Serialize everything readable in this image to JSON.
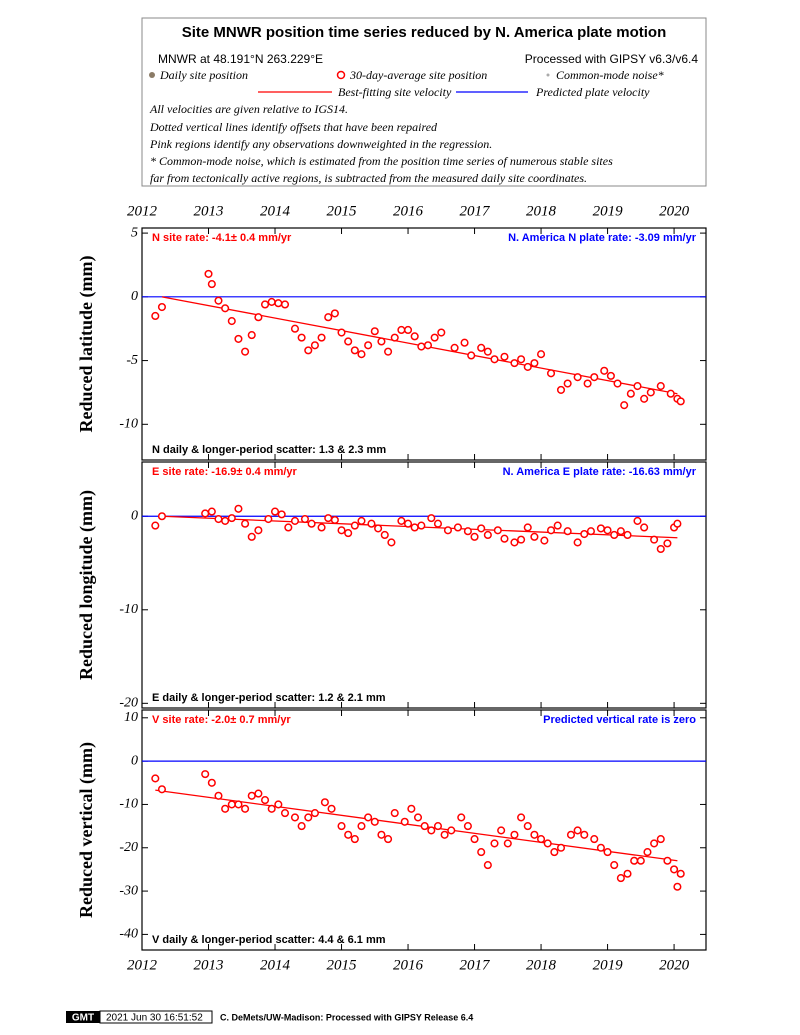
{
  "header": {
    "title": "Site MNWR position time series reduced by N. America plate motion",
    "location": "MNWR at 48.191°N 263.229°E",
    "processing": "Processed with GIPSY v6.3/v6.4",
    "legend": {
      "daily": "Daily site position",
      "average": "30-day-average site position",
      "noise": "Common-mode noise*",
      "best_fit": "Best-fitting site velocity",
      "predicted": "Predicted plate velocity"
    },
    "notes": [
      "All velocities are given relative to IGS14.",
      "Dotted vertical lines identify offsets that have been repaired",
      "Pink regions identify any observations downweighted in the regression.",
      "* Common-mode noise, which is estimated from the position time series of numerous stable sites",
      "far from tectonically active regions, is subtracted from the measured daily site coordinates."
    ]
  },
  "chart_data": [
    {
      "type": "scatter",
      "y_label": "Reduced latitude (mm)",
      "rate_label": "N site rate:  -4.1± 0.4 mm/yr",
      "plate_label": "N. America N plate rate: -3.09 mm/yr",
      "scatter_label": "N daily & longer-period scatter:   1.3 &   2.3 mm",
      "xlim": [
        2012,
        2020.48
      ],
      "xticks": [
        2012,
        2013,
        2014,
        2015,
        2016,
        2017,
        2018,
        2019,
        2020
      ],
      "ylim": [
        -12.8,
        5.4
      ],
      "yticks": [
        5,
        0,
        -5,
        -10
      ],
      "reference_line": 0,
      "reference_color": "#0000ff",
      "fit_line": {
        "color": "#ff0000",
        "x": [
          2012.3,
          2020.05
        ],
        "values": [
          0,
          -7.6
        ]
      },
      "series": [
        {
          "color": "#ff0000",
          "x": [
            2012.2,
            2012.3,
            2013.0,
            2013.05,
            2013.15,
            2013.25,
            2013.35,
            2013.45,
            2013.55,
            2013.65,
            2013.75,
            2013.85,
            2013.95,
            2014.05,
            2014.15,
            2014.3,
            2014.4,
            2014.5,
            2014.6,
            2014.7,
            2014.8,
            2014.9,
            2015.0,
            2015.1,
            2015.2,
            2015.3,
            2015.4,
            2015.5,
            2015.6,
            2015.7,
            2015.8,
            2015.9,
            2016.0,
            2016.1,
            2016.2,
            2016.3,
            2016.4,
            2016.5,
            2016.7,
            2016.85,
            2016.95,
            2017.1,
            2017.2,
            2017.3,
            2017.45,
            2017.6,
            2017.7,
            2017.8,
            2017.9,
            2018.0,
            2018.15,
            2018.3,
            2018.4,
            2018.55,
            2018.7,
            2018.8,
            2018.95,
            2019.05,
            2019.15,
            2019.25,
            2019.35,
            2019.45,
            2019.55,
            2019.65,
            2019.8,
            2019.95,
            2020.05,
            2020.1
          ],
          "values": [
            -1.5,
            -0.8,
            1.8,
            1,
            -0.3,
            -0.9,
            -1.9,
            -3.3,
            -4.3,
            -3.0,
            -1.6,
            -0.6,
            -0.4,
            -0.5,
            -0.6,
            -2.5,
            -3.2,
            -4.2,
            -3.8,
            -3.2,
            -1.6,
            -1.3,
            -2.8,
            -3.5,
            -4.2,
            -4.5,
            -3.8,
            -2.7,
            -3.5,
            -4.3,
            -3.2,
            -2.6,
            -2.6,
            -3.1,
            -3.9,
            -3.8,
            -3.2,
            -2.8,
            -4.0,
            -3.6,
            -4.6,
            -4.0,
            -4.3,
            -4.9,
            -4.7,
            -5.2,
            -4.9,
            -5.5,
            -5.2,
            -4.5,
            -6.0,
            -7.3,
            -6.8,
            -6.3,
            -6.8,
            -6.3,
            -5.8,
            -6.2,
            -6.8,
            -8.5,
            -7.6,
            -7.0,
            -8.0,
            -7.5,
            -7.0,
            -7.6,
            -8.0,
            -8.2
          ]
        }
      ]
    },
    {
      "type": "scatter",
      "y_label": "Reduced longitude (mm)",
      "rate_label": "E site rate: -16.9± 0.4 mm/yr",
      "plate_label": "N. America E plate rate: -16.63 mm/yr",
      "scatter_label": "E daily & longer-period scatter:   1.2 &   2.1 mm",
      "xlim": [
        2012,
        2020.48
      ],
      "xticks": [
        2012,
        2013,
        2014,
        2015,
        2016,
        2017,
        2018,
        2019,
        2020
      ],
      "ylim": [
        -20.5,
        5.8
      ],
      "yticks": [
        0,
        -10,
        -20
      ],
      "reference_line": 0,
      "reference_color": "#0000ff",
      "fit_line": {
        "color": "#ff0000",
        "x": [
          2012.3,
          2020.05
        ],
        "values": [
          0,
          -2.3
        ]
      },
      "series": [
        {
          "color": "#ff0000",
          "x": [
            2012.2,
            2012.3,
            2012.95,
            2013.05,
            2013.15,
            2013.25,
            2013.35,
            2013.45,
            2013.55,
            2013.65,
            2013.75,
            2013.9,
            2014.0,
            2014.1,
            2014.2,
            2014.3,
            2014.45,
            2014.55,
            2014.7,
            2014.8,
            2014.9,
            2015.0,
            2015.1,
            2015.2,
            2015.3,
            2015.45,
            2015.55,
            2015.65,
            2015.75,
            2015.9,
            2016.0,
            2016.1,
            2016.2,
            2016.35,
            2016.45,
            2016.6,
            2016.75,
            2016.9,
            2017.0,
            2017.1,
            2017.2,
            2017.35,
            2017.45,
            2017.6,
            2017.7,
            2017.8,
            2017.9,
            2018.05,
            2018.15,
            2018.25,
            2018.4,
            2018.55,
            2018.65,
            2018.75,
            2018.9,
            2019.0,
            2019.1,
            2019.2,
            2019.3,
            2019.45,
            2019.55,
            2019.7,
            2019.8,
            2019.9,
            2020.0,
            2020.05
          ],
          "values": [
            -1,
            0,
            0.3,
            0.5,
            -0.3,
            -0.5,
            -0.2,
            0.8,
            -0.8,
            -2.2,
            -1.5,
            -0.3,
            0.5,
            0.2,
            -1.2,
            -0.5,
            -0.3,
            -0.8,
            -1.2,
            -0.2,
            -0.4,
            -1.5,
            -1.8,
            -1.0,
            -0.5,
            -0.8,
            -1.3,
            -2.0,
            -2.8,
            -0.5,
            -0.8,
            -1.2,
            -1.0,
            -0.2,
            -0.8,
            -1.5,
            -1.2,
            -1.6,
            -2.2,
            -1.3,
            -2.0,
            -1.5,
            -2.4,
            -2.8,
            -2.5,
            -1.2,
            -2.2,
            -2.6,
            -1.5,
            -1.0,
            -1.6,
            -2.8,
            -1.9,
            -1.6,
            -1.3,
            -1.5,
            -2.0,
            -1.6,
            -2.0,
            -0.5,
            -1.2,
            -2.5,
            -3.5,
            -2.9,
            -1.2,
            -0.8
          ]
        }
      ]
    },
    {
      "type": "scatter",
      "y_label": "Reduced vertical (mm)",
      "rate_label": "V site rate:  -2.0± 0.7 mm/yr",
      "plate_label": "Predicted vertical rate is zero",
      "scatter_label": "V daily & longer-period scatter:   4.4 &   6.1 mm",
      "xlim": [
        2012,
        2020.48
      ],
      "xticks": [
        2012,
        2013,
        2014,
        2015,
        2016,
        2017,
        2018,
        2019,
        2020
      ],
      "ylim": [
        -43.6,
        11.8
      ],
      "yticks": [
        10,
        0,
        -10,
        -20,
        -30,
        -40
      ],
      "reference_line": 0,
      "reference_color": "#0000ff",
      "fit_line": {
        "color": "#ff0000",
        "x": [
          2012.2,
          2020.05
        ],
        "values": [
          -6.7,
          -23
        ]
      },
      "series": [
        {
          "color": "#ff0000",
          "x": [
            2012.2,
            2012.3,
            2012.95,
            2013.05,
            2013.15,
            2013.25,
            2013.35,
            2013.45,
            2013.55,
            2013.65,
            2013.75,
            2013.85,
            2013.95,
            2014.05,
            2014.15,
            2014.3,
            2014.4,
            2014.5,
            2014.6,
            2014.75,
            2014.85,
            2015.0,
            2015.1,
            2015.2,
            2015.3,
            2015.4,
            2015.5,
            2015.6,
            2015.7,
            2015.8,
            2015.95,
            2016.05,
            2016.15,
            2016.25,
            2016.35,
            2016.45,
            2016.55,
            2016.65,
            2016.8,
            2016.9,
            2017.0,
            2017.1,
            2017.2,
            2017.3,
            2017.4,
            2017.5,
            2017.6,
            2017.7,
            2017.8,
            2017.9,
            2018.0,
            2018.1,
            2018.2,
            2018.3,
            2018.45,
            2018.55,
            2018.65,
            2018.8,
            2018.9,
            2019.0,
            2019.1,
            2019.2,
            2019.3,
            2019.4,
            2019.5,
            2019.6,
            2019.7,
            2019.8,
            2019.9,
            2020.0,
            2020.05,
            2020.1
          ],
          "values": [
            -4,
            -6.5,
            -3,
            -5,
            -8,
            -11,
            -10,
            -10,
            -11,
            -8,
            -7.5,
            -9,
            -11,
            -10,
            -12,
            -13,
            -15,
            -13,
            -12,
            -9.5,
            -11,
            -15,
            -17,
            -18,
            -15,
            -13,
            -14,
            -17,
            -18,
            -12,
            -14,
            -11,
            -13,
            -15,
            -16,
            -15,
            -17,
            -16,
            -13,
            -15,
            -18,
            -21,
            -24,
            -19,
            -16,
            -19,
            -17,
            -13,
            -15,
            -17,
            -18,
            -19,
            -21,
            -20,
            -17,
            -16,
            -17,
            -18,
            -20,
            -21,
            -24,
            -27,
            -26,
            -23,
            -23,
            -21,
            -19,
            -18,
            -23,
            -25,
            -29,
            -26
          ]
        }
      ]
    }
  ],
  "footer": {
    "logo": "GMT",
    "timestamp": "2021 Jun 30 16:51:52",
    "credit": "C. DeMets/UW-Madison: Processed with GIPSY Release 6.4"
  }
}
